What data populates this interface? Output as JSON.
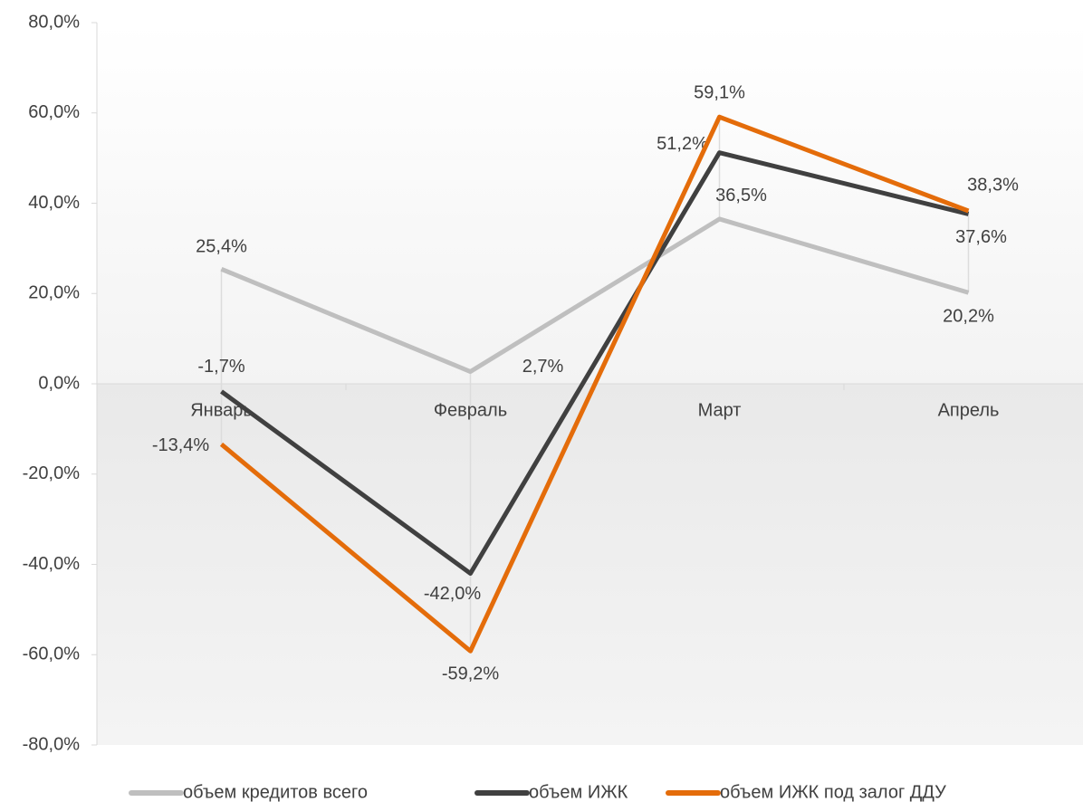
{
  "chart_data": {
    "type": "line",
    "categories": [
      "Январь",
      "Февраль",
      "Март",
      "Апрель"
    ],
    "series": [
      {
        "name": "объем кредитов всего",
        "color": "#bfbfbf",
        "values": [
          25.4,
          2.7,
          36.5,
          20.2
        ],
        "value_labels": [
          "25,4%",
          "2,7%",
          "36,5%",
          "20,2%"
        ],
        "label_color": "#595959"
      },
      {
        "name": "объем ИЖК",
        "color": "#404040",
        "values": [
          -1.7,
          -42.0,
          51.2,
          37.6
        ],
        "value_labels": [
          "-1,7%",
          "-42,0%",
          "51,2%",
          "37,6%"
        ],
        "label_color": "#000000"
      },
      {
        "name": "объем ИЖК под залог ДДУ",
        "color": "#e46c0a",
        "values": [
          -13.4,
          -59.2,
          59.1,
          38.3
        ],
        "value_labels": [
          "-13,4%",
          "-59,2%",
          "59,1%",
          "38,3%"
        ],
        "label_color": "#e46c0a"
      }
    ],
    "ylim": [
      -80,
      80
    ],
    "yticks": [
      {
        "value": -80,
        "label": "-80,0%"
      },
      {
        "value": -60,
        "label": "-60,0%"
      },
      {
        "value": -40,
        "label": "-40,0%"
      },
      {
        "value": -20,
        "label": "-20,0%"
      },
      {
        "value": 0,
        "label": "0,0%"
      },
      {
        "value": 20,
        "label": "20,0%"
      },
      {
        "value": 40,
        "label": "40,0%"
      },
      {
        "value": 60,
        "label": "60,0%"
      },
      {
        "value": 80,
        "label": "80,0%"
      }
    ],
    "legend": "bottom"
  }
}
